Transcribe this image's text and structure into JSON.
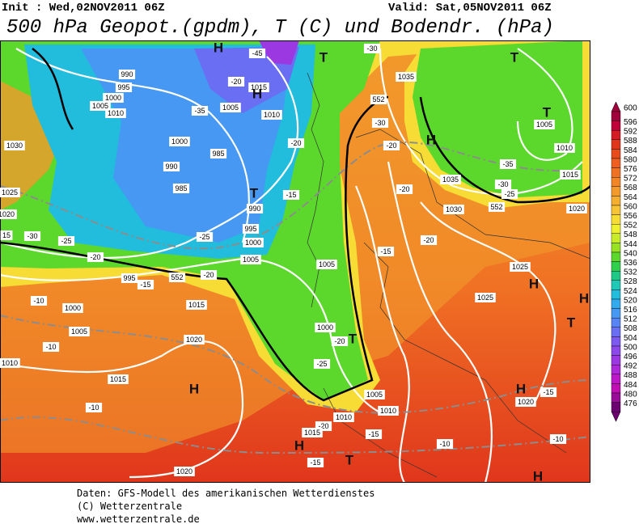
{
  "header": {
    "init": "Init : Wed,02NOV2011 06Z",
    "valid": "Valid: Sat,05NOV2011 06Z",
    "title": "500 hPa Geopot.(gpdm), T (C) und Bodendr. (hPa)"
  },
  "colorbar": {
    "levels": [
      600,
      596,
      592,
      588,
      584,
      580,
      576,
      572,
      568,
      564,
      560,
      556,
      552,
      548,
      544,
      540,
      536,
      532,
      528,
      524,
      520,
      516,
      512,
      508,
      504,
      500,
      496,
      492,
      488,
      484,
      480,
      476
    ],
    "colors": [
      "#a0003c",
      "#c00038",
      "#d41c24",
      "#e0361c",
      "#e84c1c",
      "#ee5e20",
      "#f07224",
      "#f08628",
      "#f29a2c",
      "#f4ae30",
      "#f6c434",
      "#f6dc34",
      "#eef030",
      "#c8ec28",
      "#98e224",
      "#5cd82c",
      "#30d04c",
      "#20c888",
      "#20c8b8",
      "#22bcdc",
      "#34aaee",
      "#4698f2",
      "#5884f4",
      "#6a6ef2",
      "#7c5af0",
      "#8c48ea",
      "#9c38e2",
      "#ac28d8",
      "#bc18c8",
      "#c010b4",
      "#980c98",
      "#6c0070"
    ]
  },
  "map": {
    "labels": [
      "990",
      "995",
      "1000",
      "1005",
      "1010",
      "1030",
      "1025",
      "1020",
      "15",
      "-30",
      "-25",
      "-20",
      "995",
      "-15",
      "-10",
      "1000",
      "1005",
      "-10",
      "1010",
      "1015",
      "-10",
      "1020",
      "1020",
      "1015",
      "1000",
      "990",
      "985",
      "985",
      "990",
      "995",
      "1000",
      "1005",
      "1005",
      "1010",
      "1015",
      "-20",
      "-35",
      "-45",
      "-20",
      "-15",
      "-25",
      "-20",
      "1005",
      "1000",
      "-20",
      "-25",
      "1005",
      "1010",
      "-20",
      "-15",
      "1010",
      "1015",
      "-15",
      "1025",
      "1025",
      "1030",
      "1035",
      "1035",
      "-30",
      "-20",
      "-20",
      "-20",
      "-15",
      "-10",
      "-10",
      "-15",
      "1020",
      "1005",
      "1010",
      "1015",
      "1020",
      "-30",
      "-25",
      "-35",
      "-30",
      "552",
      "552",
      "552",
      "H",
      "T",
      "H",
      "T",
      "H",
      "T",
      "T",
      "H",
      "T",
      "H",
      "T",
      "H",
      "T",
      "H",
      "H",
      "H"
    ]
  },
  "footer": {
    "lines": [
      "Daten: GFS-Modell des amerikanischen Wetterdienstes",
      "(C) Wetterzentrale",
      "www.wetterzentrale.de"
    ]
  }
}
